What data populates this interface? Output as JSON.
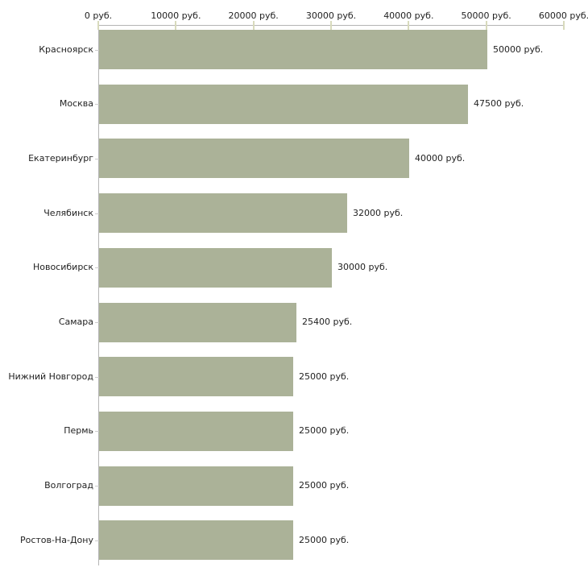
{
  "chart_data": {
    "type": "bar",
    "orientation": "horizontal",
    "categories": [
      "Красноярск",
      "Москва",
      "Екатеринбург",
      "Челябинск",
      "Новосибирск",
      "Самара",
      "Нижний Новгород",
      "Пермь",
      "Волгоград",
      "Ростов-На-Дону"
    ],
    "values": [
      50000,
      47500,
      40000,
      32000,
      30000,
      25400,
      25000,
      25000,
      25000,
      25000
    ],
    "value_labels": [
      "50000 руб.",
      "47500 руб.",
      "40000 руб.",
      "32000 руб.",
      "30000 руб.",
      "25400 руб.",
      "25000 руб.",
      "25000 руб.",
      "25000 руб.",
      "25000 руб."
    ],
    "x_tick_values": [
      0,
      10000,
      20000,
      30000,
      40000,
      50000,
      60000
    ],
    "x_tick_labels": [
      "0 руб.",
      "10000 руб.",
      "20000 руб.",
      "30000 руб.",
      "40000 руб.",
      "50000 руб.",
      "60000 руб."
    ],
    "xlim": [
      0,
      60000
    ],
    "unit": "руб.",
    "grid": false,
    "legend": false,
    "axis_position": "top",
    "colors": {
      "bar": "#abb298",
      "axis": "#b5b5b5",
      "x_tick": "#d8dabc",
      "y_tick": "#cccccc",
      "text": "#222222",
      "background": "#ffffff"
    }
  }
}
